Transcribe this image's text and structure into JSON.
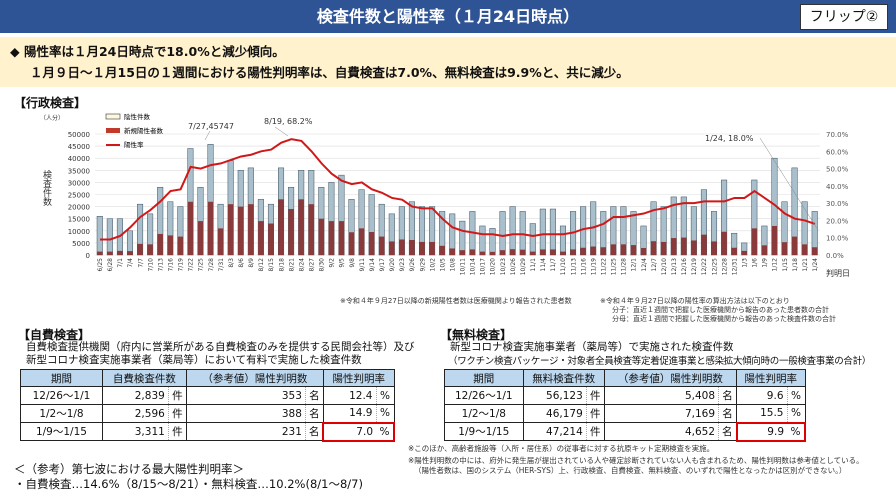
{
  "header": {
    "title": "検査件数と陽性率（１月24日時点）",
    "flip": "フリップ②"
  },
  "summary": {
    "line1": "◆ 陽性率は１月24日時点で18.0%と減少傾向。",
    "line2": "１月９日～１月15日の１週間における陽性判明率は、自費検査は7.0%、無料検査は9.9%と、共に減少。"
  },
  "gyosei": {
    "title": "【行政検査】",
    "note1": "※令和４年９月27日以降の新規陽性者数は医療機関より報告された患者数",
    "note2": "※令和４年９月27日以降の陽性率の算出方法は以下のとおり",
    "note3": "分子：直近１週間で把握した医療機関から報告のあった患者数の合計",
    "note4": "分母：直近１週間で把握した医療機関から報告のあった検査件数の合計"
  },
  "chart_data": {
    "type": "bar+line",
    "unit_label": "（人分）",
    "ylabel": "検査件数",
    "xlabel": "判明日",
    "ylim": [
      0,
      50000
    ],
    "y2lim": [
      0,
      70
    ],
    "yticks": [
      "0",
      "5000",
      "10000",
      "15000",
      "20000",
      "25000",
      "30000",
      "35000",
      "40000",
      "45000",
      "50000"
    ],
    "y2ticks": [
      "0.0%",
      "10.0%",
      "20.0%",
      "30.0%",
      "40.0%",
      "50.0%",
      "60.0%",
      "70.0%"
    ],
    "legend": [
      "陰性件数",
      "新規陽性者数",
      "陽性率"
    ],
    "annotations": [
      "7/27,45747",
      "8/19, 68.2%",
      "1/24, 18.0%"
    ],
    "categories": [
      "6/25",
      "6/28",
      "7/1",
      "7/4",
      "7/7",
      "7/10",
      "7/13",
      "7/16",
      "7/19",
      "7/22",
      "7/25",
      "7/28",
      "7/31",
      "8/3",
      "8/6",
      "8/9",
      "8/12",
      "8/15",
      "8/18",
      "8/21",
      "8/24",
      "8/27",
      "8/30",
      "9/2",
      "9/5",
      "9/8",
      "9/11",
      "9/14",
      "9/17",
      "9/20",
      "9/23",
      "9/26",
      "9/29",
      "10/2",
      "10/5",
      "10/8",
      "10/11",
      "10/14",
      "10/17",
      "10/20",
      "10/23",
      "10/26",
      "10/29",
      "11/1",
      "11/4",
      "11/7",
      "11/10",
      "11/13",
      "11/16",
      "11/19",
      "11/22",
      "11/25",
      "11/28",
      "12/1",
      "12/4",
      "12/7",
      "12/10",
      "12/13",
      "12/16",
      "12/19",
      "12/22",
      "12/25",
      "12/28",
      "12/31",
      "1/3",
      "1/6",
      "1/9",
      "1/12",
      "1/15",
      "1/18",
      "1/21",
      "1/24"
    ],
    "series": [
      {
        "name": "検査件数",
        "values": [
          16000,
          15000,
          15000,
          10000,
          21000,
          17000,
          28000,
          22000,
          20000,
          44000,
          28000,
          45747,
          21000,
          39000,
          35000,
          36000,
          23000,
          21000,
          36000,
          28000,
          35000,
          35000,
          28000,
          30000,
          33000,
          23000,
          27000,
          25000,
          21000,
          17000,
          20000,
          22000,
          20000,
          20000,
          18000,
          17000,
          14000,
          18000,
          12000,
          11000,
          18000,
          20000,
          18000,
          13000,
          19000,
          19000,
          12000,
          18000,
          20000,
          22000,
          18000,
          20000,
          20000,
          18000,
          12000,
          22000,
          20000,
          24000,
          24000,
          20000,
          27000,
          18000,
          31000,
          9000,
          5000,
          31000,
          12000,
          40000,
          22000,
          36000,
          22000,
          18000
        ]
      },
      {
        "name": "新規陽性者数",
        "values": [
          1400,
          1400,
          1700,
          1600,
          4600,
          4400,
          8700,
          8100,
          7600,
          22000,
          14000,
          22000,
          11000,
          21000,
          20000,
          21000,
          14000,
          13000,
          23000,
          19000,
          23000,
          21000,
          15000,
          14000,
          14000,
          9400,
          11000,
          9500,
          7600,
          5600,
          6400,
          6200,
          5400,
          5400,
          3800,
          2700,
          2000,
          2300,
          1400,
          1300,
          2000,
          2400,
          2200,
          1400,
          2300,
          2300,
          1400,
          2300,
          3000,
          3500,
          3200,
          4400,
          4400,
          4100,
          2900,
          5700,
          5400,
          7000,
          7200,
          6000,
          8400,
          5600,
          9600,
          3000,
          1700,
          11000,
          4000,
          12000,
          5300,
          7600,
          4400,
          3200
        ]
      },
      {
        "name": "陽性率",
        "values": [
          9,
          9,
          11,
          16,
          22,
          26,
          31,
          37,
          38,
          51,
          50,
          52,
          53,
          55,
          57,
          58,
          60,
          61,
          65,
          67,
          66,
          60,
          53,
          47,
          43,
          41,
          42,
          38,
          36,
          33,
          32,
          28,
          27,
          27,
          21,
          16,
          14,
          13,
          12,
          12,
          11,
          12,
          12,
          11,
          12,
          12,
          12,
          13,
          15,
          16,
          18,
          22,
          22,
          23,
          24,
          26,
          27,
          29,
          30,
          30,
          31,
          31,
          31,
          33,
          33,
          37,
          33,
          29,
          24,
          21,
          20,
          18
        ]
      }
    ]
  },
  "jihi": {
    "title": "【自費検査】",
    "desc1": "自費検査提供機関（府内に営業所がある自費検査のみを提供する民間会社等）及び",
    "desc2": "新型コロナ検査実施事業者（薬局等）において有料で実施した検査件数",
    "headers": [
      "期間",
      "自費検査件数",
      "（参考値）陽性判明数",
      "陽性判明率"
    ],
    "rows": [
      [
        "12/26～1/1",
        "2,839",
        "件",
        "353",
        "名",
        "12.4",
        "%"
      ],
      [
        "1/2～1/8",
        "2,596",
        "件",
        "388",
        "名",
        "14.9",
        "%"
      ],
      [
        "1/9～1/15",
        "3,311",
        "件",
        "231",
        "名",
        "7.0",
        "%"
      ]
    ]
  },
  "muryo": {
    "title": "【無料検査】",
    "desc1": "新型コロナ検査実施事業者（薬局等）で実施された検査件数",
    "desc2": "（ワクチン検査パッケージ・対象者全員検査等定着促進事業と感染拡大傾向時の一般検査事業の合計）",
    "headers": [
      "期間",
      "無料検査件数",
      "（参考値）陽性判明数",
      "陽性判明率"
    ],
    "rows": [
      [
        "12/26～1/1",
        "56,123",
        "件",
        "5,408",
        "名",
        "9.6",
        "%"
      ],
      [
        "1/2～1/8",
        "46,179",
        "件",
        "7,169",
        "名",
        "15.5",
        "%"
      ],
      [
        "1/9～1/15",
        "47,214",
        "件",
        "4,652",
        "名",
        "9.9",
        "%"
      ]
    ],
    "note1": "※このほか、高齢者施設等（入所・居住系）の従事者に対する抗原キット定期検査を実施。",
    "note2": "※陽性判明数の中には、府外に発生届が提出されている人や確定診断されていない人も含まれるため、陽性判明数は参考値としている。",
    "note3": "（陽性者数は、国のシステム（HER-SYS）上、行政検査、自費検査、無料検査、のいずれで陽性となったかは区別ができない。）"
  },
  "reference": {
    "line1": "＜（参考）第七波における最大陽性判明率＞",
    "line2": "・自費検査…14.6%（8/15～8/21）・無料検査…10.2%(8/1～8/7)"
  }
}
